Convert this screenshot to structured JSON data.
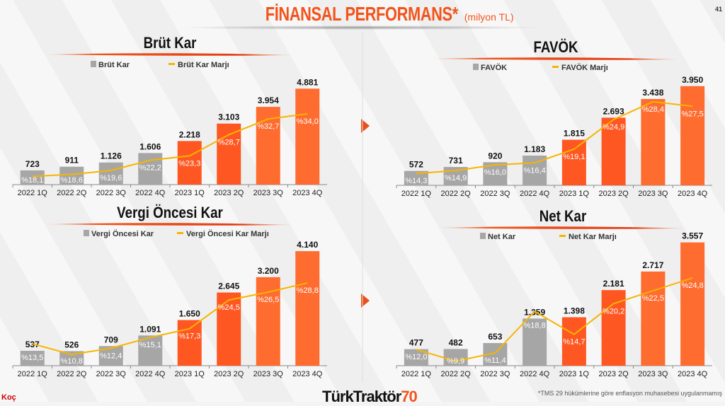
{
  "page": {
    "title": "FİNANSAL PERFORMANS*",
    "unit": "(milyon TL)",
    "page_number": "41",
    "footnote": "*TMS 29 hükümlerine göre enflasyon muhasebesi uygulanmamış",
    "brand_name": "TürkTraktör",
    "brand_number": "70",
    "koc_logo": "Koç"
  },
  "colors": {
    "grey": "#a6a6a6",
    "orange_dark": "#ff5722",
    "orange_light": "#ff6c30",
    "line": "#f7b500",
    "accent": "#f2541b"
  },
  "chart_data": [
    {
      "type": "bar+line",
      "title": "Brüt Kar",
      "legend": {
        "bar": "Brüt Kar",
        "line": "Brüt Kar Marjı",
        "placement": "top"
      },
      "categories": [
        "2022 1Q",
        "2022 2Q",
        "2022 3Q",
        "2022 4Q",
        "2023 1Q",
        "2023 2Q",
        "2023 3Q",
        "2023 4Q"
      ],
      "bar_labels": [
        "723",
        "911",
        "1.126",
        "1.606",
        "2.218",
        "3.103",
        "3.954",
        "4.881"
      ],
      "values": [
        723,
        911,
        1126,
        1606,
        2218,
        3103,
        3954,
        4881
      ],
      "margin_labels": [
        "%18,1",
        "%18,6",
        "%19,6",
        "%22,2",
        "%23,3",
        "%28,7",
        "%32,7",
        "%34,0"
      ],
      "margins": [
        18.1,
        18.6,
        19.6,
        22.2,
        23.3,
        28.7,
        32.7,
        34.0
      ],
      "ylim": [
        0,
        5000
      ],
      "y2lim": [
        16,
        41
      ],
      "grid": false
    },
    {
      "type": "bar+line",
      "title": "FAVÖK",
      "legend": {
        "bar": "FAVÖK",
        "line": "FAVÖK Marjı",
        "placement": "top"
      },
      "categories": [
        "2022 1Q",
        "2022 2Q",
        "2022 3Q",
        "2022 4Q",
        "2023 1Q",
        "2023 2Q",
        "2023 3Q",
        "2023 4Q"
      ],
      "bar_labels": [
        "572",
        "731",
        "920",
        "1.183",
        "1.815",
        "2.693",
        "3.438",
        "3.950"
      ],
      "values": [
        572,
        731,
        920,
        1183,
        1815,
        2693,
        3438,
        3950
      ],
      "margin_labels": [
        "%14,3",
        "%14,9",
        "%16,0",
        "%16,4",
        "%19,1",
        "%24,9",
        "%28,4",
        "%27,5"
      ],
      "margins": [
        14.3,
        14.9,
        16.0,
        16.4,
        19.1,
        24.9,
        28.4,
        27.5
      ],
      "ylim": [
        0,
        4000
      ],
      "y2lim": [
        12,
        31.7
      ],
      "grid": false
    },
    {
      "type": "bar+line",
      "title": "Vergi Öncesi Kar",
      "legend": {
        "bar": "Vergi Öncesi Kar",
        "line": "Vergi Öncesi Kar Marjı",
        "placement": "top"
      },
      "categories": [
        "2022 1Q",
        "2022 2Q",
        "2022 3Q",
        "2022 4Q",
        "2023 1Q",
        "2023 2Q",
        "2023 3Q",
        "2023 4Q"
      ],
      "bar_labels": [
        "537",
        "526",
        "709",
        "1.091",
        "1.650",
        "2.645",
        "3.200",
        "4.140"
      ],
      "values": [
        537,
        526,
        709,
        1091,
        1650,
        2645,
        3200,
        4140
      ],
      "margin_labels": [
        "%13,5",
        "%10,8",
        "%12,4",
        "%15,1",
        "%17,3",
        "%24,5",
        "%26,5",
        "%28,8"
      ],
      "margins": [
        13.5,
        10.8,
        12.4,
        15.1,
        17.3,
        24.5,
        26.5,
        28.8
      ],
      "ylim": [
        0,
        4500
      ],
      "y2lim": [
        8,
        39.3
      ],
      "grid": false
    },
    {
      "type": "bar+line",
      "title": "Net Kar",
      "legend": {
        "bar": "Net Kar",
        "line": "Net Kar Marjı",
        "placement": "top"
      },
      "categories": [
        "2022 1Q",
        "2022 2Q",
        "2022 3Q",
        "2022 4Q",
        "2023 1Q",
        "2023 2Q",
        "2023 3Q",
        "2023 4Q"
      ],
      "bar_labels": [
        "477",
        "482",
        "653",
        "1.359",
        "1.398",
        "2.181",
        "2.717",
        "3.557"
      ],
      "values": [
        477,
        482,
        653,
        1359,
        1398,
        2181,
        2717,
        3557
      ],
      "margin_labels": [
        "%12,0",
        "%9,9",
        "%11,4",
        "%18,8",
        "%14,7",
        "%20,2",
        "%22,5",
        "%24,8"
      ],
      "margins": [
        12.0,
        9.9,
        11.4,
        18.8,
        14.7,
        20.2,
        22.5,
        24.8
      ],
      "ylim": [
        0,
        4000
      ],
      "y2lim": [
        9.1,
        33.9
      ],
      "grid": false
    }
  ]
}
